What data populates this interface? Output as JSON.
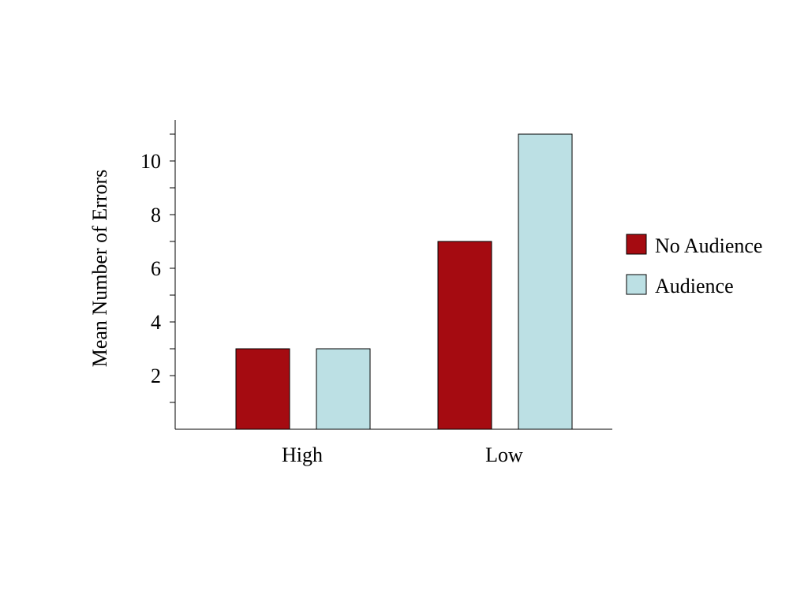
{
  "chart_data": {
    "type": "bar",
    "title": "",
    "xlabel": "",
    "ylabel": "Mean Number of Errors",
    "categories": [
      "High",
      "Low"
    ],
    "series": [
      {
        "name": "No Audience",
        "values": [
          3,
          7
        ],
        "color": "#A50B11"
      },
      {
        "name": "Audience",
        "values": [
          3,
          11
        ],
        "color": "#BCE0E4"
      }
    ],
    "ylim": [
      0,
      11.5
    ],
    "yticks_major": [
      2,
      4,
      6,
      8,
      10
    ],
    "yticks_minor": [
      1,
      3,
      5,
      7,
      9,
      11
    ],
    "grid": false,
    "legend_position": "right"
  }
}
